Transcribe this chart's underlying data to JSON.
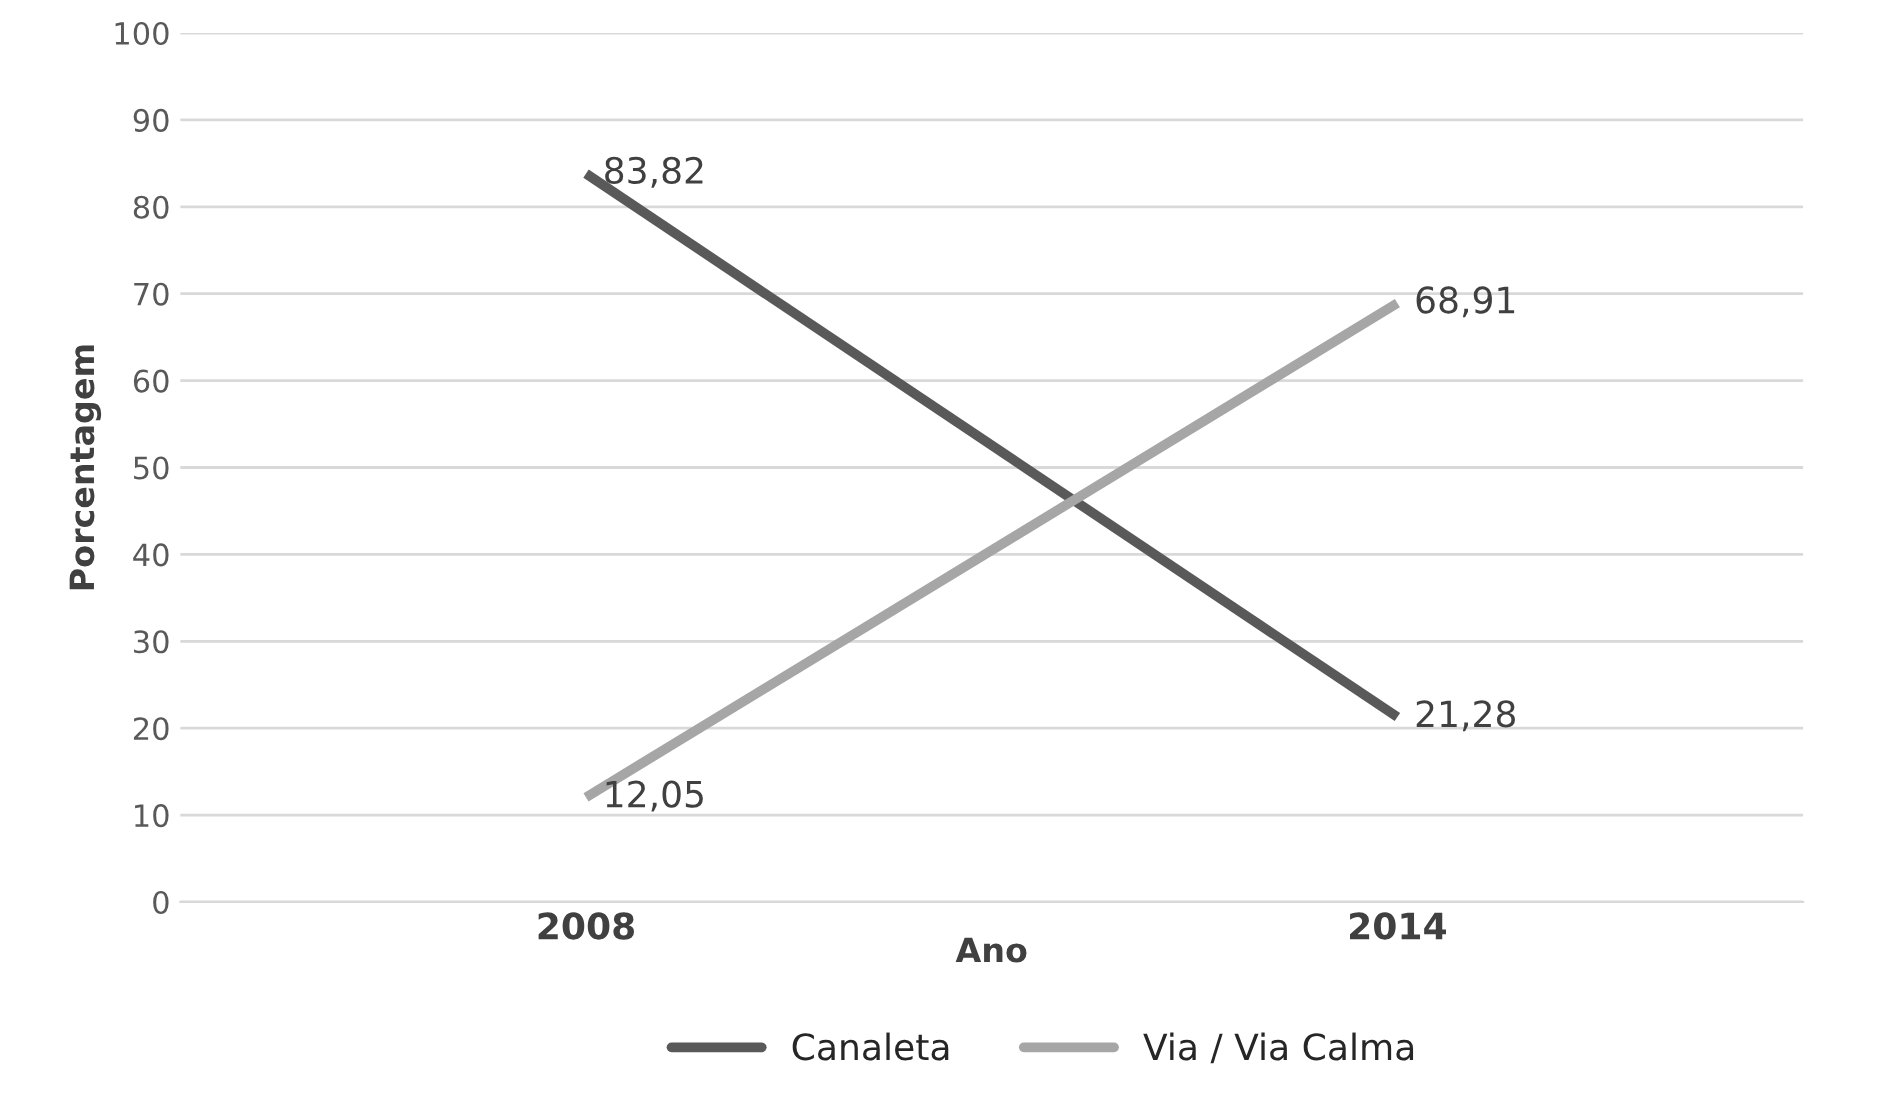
{
  "chart_data": {
    "type": "line",
    "xlabel": "Ano",
    "ylabel": "Porcentagem",
    "categories": [
      "2008",
      "2014"
    ],
    "series": [
      {
        "name": "Canaleta",
        "color": "#595959",
        "values": [
          83.82,
          21.28
        ],
        "value_labels": [
          "83,82",
          "21,28"
        ]
      },
      {
        "name": "Via / Via Calma",
        "color": "#a6a6a6",
        "values": [
          12.05,
          68.91
        ],
        "value_labels": [
          "12,05",
          "68,91"
        ]
      }
    ],
    "ylim": [
      0,
      100
    ],
    "yticks": [
      0,
      10,
      20,
      30,
      40,
      50,
      60,
      70,
      80,
      90,
      100
    ],
    "grid": "y",
    "legend": "bottom",
    "marker": "none",
    "line_style": "solid"
  }
}
